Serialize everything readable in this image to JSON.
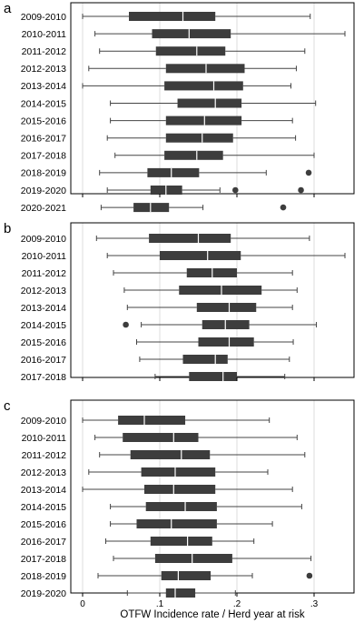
{
  "chart_data": [
    {
      "type": "box",
      "panel_label": "a",
      "categories": [
        "2009-2010",
        "2010-2011",
        "2011-2012",
        "2012-2013",
        "2013-2014",
        "2014-2015",
        "2015-2016",
        "2016-2017",
        "2017-2018",
        "2018-2019",
        "2019-2020",
        "2020-2021"
      ],
      "boxes": [
        {
          "min": 0.0,
          "q1": 0.06,
          "median": 0.13,
          "q3": 0.172,
          "max": 0.295,
          "outliers": []
        },
        {
          "min": 0.016,
          "q1": 0.09,
          "median": 0.138,
          "q3": 0.192,
          "max": 0.34,
          "outliers": []
        },
        {
          "min": 0.022,
          "q1": 0.095,
          "median": 0.148,
          "q3": 0.185,
          "max": 0.288,
          "outliers": []
        },
        {
          "min": 0.008,
          "q1": 0.108,
          "median": 0.16,
          "q3": 0.21,
          "max": 0.277,
          "outliers": []
        },
        {
          "min": 0.0,
          "q1": 0.106,
          "median": 0.17,
          "q3": 0.208,
          "max": 0.27,
          "outliers": []
        },
        {
          "min": 0.036,
          "q1": 0.123,
          "median": 0.172,
          "q3": 0.206,
          "max": 0.302,
          "outliers": []
        },
        {
          "min": 0.036,
          "q1": 0.108,
          "median": 0.158,
          "q3": 0.206,
          "max": 0.272,
          "outliers": []
        },
        {
          "min": 0.032,
          "q1": 0.108,
          "median": 0.155,
          "q3": 0.195,
          "max": 0.276,
          "outliers": []
        },
        {
          "min": 0.042,
          "q1": 0.106,
          "median": 0.148,
          "q3": 0.182,
          "max": 0.3,
          "outliers": []
        },
        {
          "min": 0.022,
          "q1": 0.084,
          "median": 0.115,
          "q3": 0.151,
          "max": 0.238,
          "outliers": [
            0.293
          ]
        },
        {
          "min": 0.032,
          "q1": 0.088,
          "median": 0.108,
          "q3": 0.129,
          "max": 0.178,
          "outliers": [
            0.198,
            0.283
          ]
        },
        {
          "min": 0.024,
          "q1": 0.066,
          "median": 0.088,
          "q3": 0.112,
          "max": 0.156,
          "outliers": [
            0.26
          ]
        }
      ],
      "xlim": [
        0,
        0.36
      ],
      "xticks": [
        "0",
        ".1",
        ".2",
        ".3"
      ],
      "xtick_values": [
        0,
        0.1,
        0.2,
        0.3
      ],
      "grid": true
    },
    {
      "type": "box",
      "panel_label": "b",
      "categories": [
        "2009-2010",
        "2010-2011",
        "2011-2012",
        "2012-2013",
        "2013-2014",
        "2014-2015",
        "2015-2016",
        "2016-2017",
        "2017-2018"
      ],
      "boxes": [
        {
          "min": 0.018,
          "q1": 0.086,
          "median": 0.15,
          "q3": 0.192,
          "max": 0.294,
          "outliers": []
        },
        {
          "min": 0.032,
          "q1": 0.1,
          "median": 0.162,
          "q3": 0.205,
          "max": 0.34,
          "outliers": []
        },
        {
          "min": 0.04,
          "q1": 0.135,
          "median": 0.168,
          "q3": 0.2,
          "max": 0.272,
          "outliers": []
        },
        {
          "min": 0.054,
          "q1": 0.125,
          "median": 0.18,
          "q3": 0.232,
          "max": 0.278,
          "outliers": []
        },
        {
          "min": 0.058,
          "q1": 0.148,
          "median": 0.19,
          "q3": 0.225,
          "max": 0.272,
          "outliers": []
        },
        {
          "min": 0.076,
          "q1": 0.155,
          "median": 0.185,
          "q3": 0.216,
          "max": 0.303,
          "outliers": [
            0.056
          ]
        },
        {
          "min": 0.07,
          "q1": 0.15,
          "median": 0.19,
          "q3": 0.222,
          "max": 0.273,
          "outliers": []
        },
        {
          "min": 0.074,
          "q1": 0.13,
          "median": 0.172,
          "q3": 0.188,
          "max": 0.268,
          "outliers": []
        },
        {
          "min": 0.094,
          "q1": 0.138,
          "median": 0.182,
          "q3": 0.2,
          "max": 0.262,
          "outliers": []
        }
      ],
      "xlim": [
        0,
        0.36
      ],
      "xticks": [
        "0",
        ".1",
        ".2",
        ".3"
      ],
      "xtick_values": [
        0,
        0.1,
        0.2,
        0.3
      ],
      "grid": true
    },
    {
      "type": "box",
      "panel_label": "c",
      "categories": [
        "2009-2010",
        "2010-2011",
        "2011-2012",
        "2012-2013",
        "2013-2014",
        "2014-2015",
        "2015-2016",
        "2016-2017",
        "2017-2018",
        "2018-2019",
        "2019-2020"
      ],
      "boxes": [
        {
          "min": 0.0,
          "q1": 0.046,
          "median": 0.08,
          "q3": 0.133,
          "max": 0.242,
          "outliers": []
        },
        {
          "min": 0.016,
          "q1": 0.052,
          "median": 0.118,
          "q3": 0.15,
          "max": 0.278,
          "outliers": []
        },
        {
          "min": 0.022,
          "q1": 0.062,
          "median": 0.128,
          "q3": 0.165,
          "max": 0.288,
          "outliers": []
        },
        {
          "min": 0.008,
          "q1": 0.076,
          "median": 0.12,
          "q3": 0.172,
          "max": 0.24,
          "outliers": []
        },
        {
          "min": 0.0,
          "q1": 0.08,
          "median": 0.118,
          "q3": 0.172,
          "max": 0.272,
          "outliers": []
        },
        {
          "min": 0.036,
          "q1": 0.082,
          "median": 0.133,
          "q3": 0.174,
          "max": 0.284,
          "outliers": []
        },
        {
          "min": 0.036,
          "q1": 0.07,
          "median": 0.115,
          "q3": 0.174,
          "max": 0.246,
          "outliers": []
        },
        {
          "min": 0.03,
          "q1": 0.088,
          "median": 0.136,
          "q3": 0.168,
          "max": 0.222,
          "outliers": []
        },
        {
          "min": 0.04,
          "q1": 0.094,
          "median": 0.142,
          "q3": 0.194,
          "max": 0.296,
          "outliers": []
        },
        {
          "min": 0.02,
          "q1": 0.102,
          "median": 0.124,
          "q3": 0.166,
          "max": 0.22,
          "outliers": [
            0.294
          ]
        },
        {
          "min": 0.058,
          "q1": 0.108,
          "median": 0.12,
          "q3": 0.146,
          "max": 0.198,
          "outliers": []
        }
      ],
      "xlim": [
        0,
        0.36
      ],
      "xticks": [
        "0",
        ".1",
        ".2",
        ".3"
      ],
      "xtick_values": [
        0,
        0.1,
        0.2,
        0.3
      ],
      "grid": true
    }
  ],
  "xlabel": "OTFW Incidence rate / Herd year at risk",
  "colors": {
    "box_fill": "#3d3d3d",
    "median_line": "#ffffff",
    "whisker": "#444444",
    "grid": "#dcdcdc",
    "frame": "#000000",
    "outlier": "#3d3d3d"
  }
}
